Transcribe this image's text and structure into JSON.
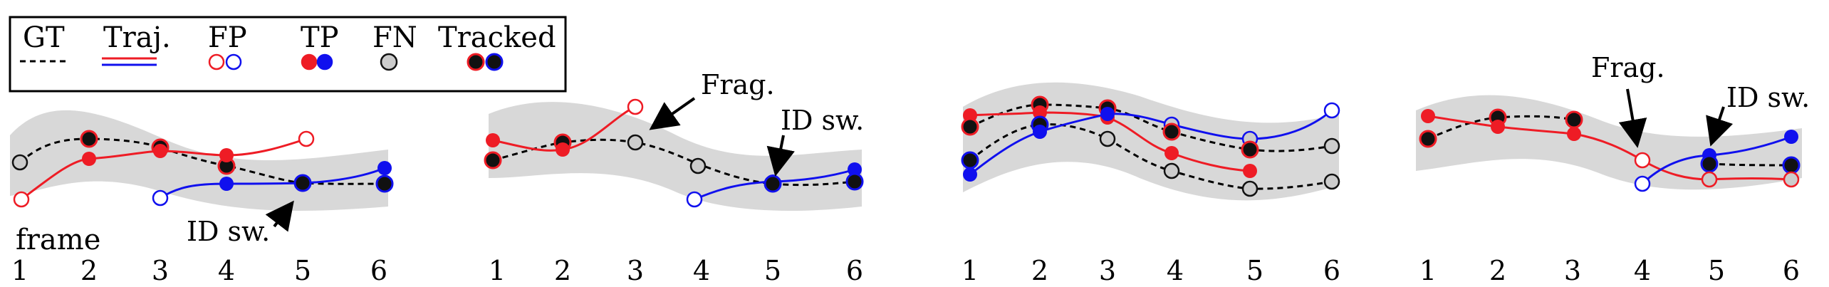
{
  "legend": {
    "gt": "GT",
    "traj": "Traj.",
    "fp": "FP",
    "tp": "TP",
    "fn": "FN",
    "tracked": "Tracked"
  },
  "frame_label": "frame",
  "frame_numbers": [
    "1",
    "2",
    "3",
    "4",
    "5",
    "6"
  ],
  "annotations": {
    "id_switch": "ID sw.",
    "fragmentation": "Frag."
  },
  "colors": {
    "red": "#ee1c25",
    "blue": "#1010ee",
    "black": "#111111",
    "gray_fill": "#d8d8d8",
    "fn_fill": "#cccccc"
  },
  "panels": [
    {
      "annotations": [
        "id_switch"
      ]
    },
    {
      "annotations": [
        "fragmentation",
        "id_switch"
      ]
    },
    {
      "annotations": []
    },
    {
      "annotations": [
        "fragmentation",
        "id_switch"
      ]
    }
  ]
}
